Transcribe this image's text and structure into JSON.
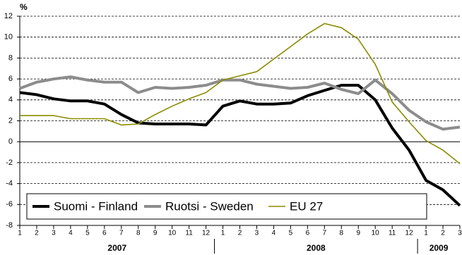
{
  "chart_data": {
    "type": "line",
    "y_label": "%",
    "categories": [
      "1",
      "2",
      "3",
      "4",
      "5",
      "6",
      "7",
      "8",
      "9",
      "10",
      "11",
      "12",
      "1",
      "2",
      "3",
      "4",
      "5",
      "6",
      "7",
      "8",
      "9",
      "10",
      "11",
      "12",
      "1",
      "2",
      "3"
    ],
    "years": [
      "2007",
      "2008",
      "2009"
    ],
    "series": [
      {
        "name": "Suomi - Finland",
        "color": "#000000",
        "width": 4,
        "values": [
          4.7,
          4.5,
          4.1,
          3.9,
          3.9,
          3.6,
          2.6,
          1.8,
          1.7,
          1.7,
          1.7,
          1.6,
          3.4,
          3.9,
          3.6,
          3.6,
          3.7,
          4.4,
          4.9,
          5.4,
          5.4,
          4.0,
          1.3,
          -0.8,
          -3.7,
          -4.6,
          -6.1
        ]
      },
      {
        "name": "Ruotsi - Sweden",
        "color": "#8c8c8c",
        "width": 4,
        "values": [
          5.1,
          5.7,
          6.0,
          6.2,
          5.9,
          5.7,
          5.7,
          4.7,
          5.2,
          5.1,
          5.2,
          5.4,
          5.9,
          5.9,
          5.5,
          5.3,
          5.1,
          5.2,
          5.6,
          5.0,
          4.6,
          5.9,
          4.6,
          3.0,
          1.9,
          1.2,
          1.4
        ]
      },
      {
        "name": "EU 27",
        "color": "#8b8b00",
        "width": 1.6,
        "values": [
          2.5,
          2.5,
          2.5,
          2.2,
          2.2,
          2.2,
          1.6,
          1.7,
          2.6,
          3.4,
          4.1,
          4.7,
          5.9,
          6.3,
          6.7,
          7.9,
          9.1,
          10.3,
          11.3,
          10.9,
          9.8,
          7.4,
          3.8,
          1.9,
          0.1,
          -0.8,
          -2.1
        ]
      }
    ],
    "ylim": [
      -8,
      12
    ],
    "yticks": [
      -8,
      -6,
      -4,
      -2,
      0,
      2,
      4,
      6,
      8,
      10,
      12
    ],
    "grid": true,
    "legend": "lower left"
  }
}
